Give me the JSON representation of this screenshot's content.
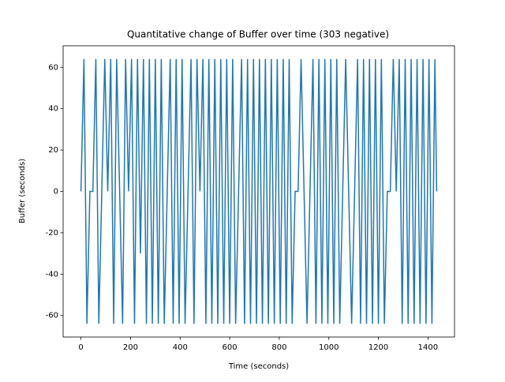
{
  "chart_data": {
    "type": "line",
    "title": "Quantitative change of Buffer over time (303 negative)",
    "x_label": "Time (seconds)",
    "y_label": "Buffer (seconds)",
    "x": [
      0,
      12,
      24,
      36,
      48,
      60,
      72,
      84,
      96,
      108,
      120,
      132,
      144,
      156,
      168,
      180,
      192,
      204,
      216,
      228,
      240,
      252,
      264,
      276,
      288,
      300,
      312,
      324,
      336,
      348,
      360,
      372,
      384,
      396,
      408,
      420,
      432,
      444,
      456,
      468,
      480,
      492,
      504,
      516,
      528,
      540,
      552,
      564,
      576,
      588,
      600,
      612,
      624,
      636,
      648,
      660,
      672,
      684,
      696,
      708,
      720,
      732,
      744,
      756,
      768,
      780,
      792,
      804,
      816,
      828,
      840,
      852,
      864,
      876,
      888,
      900,
      912,
      924,
      936,
      948,
      960,
      972,
      984,
      996,
      1008,
      1020,
      1032,
      1044,
      1056,
      1068,
      1080,
      1092,
      1104,
      1116,
      1128,
      1140,
      1152,
      1164,
      1176,
      1188,
      1200,
      1212,
      1224,
      1236,
      1248,
      1260,
      1272,
      1284,
      1296,
      1308,
      1320,
      1332,
      1344,
      1356,
      1368,
      1380,
      1392,
      1404,
      1416,
      1428,
      1435
    ],
    "values": [
      0,
      64,
      -64,
      0,
      0,
      64,
      -64,
      0,
      64,
      0,
      64,
      -64,
      64,
      0,
      -64,
      64,
      0,
      64,
      -64,
      64,
      -30,
      64,
      -64,
      64,
      -64,
      64,
      -64,
      64,
      -64,
      0,
      64,
      -64,
      64,
      -64,
      64,
      -64,
      0,
      64,
      -64,
      64,
      0,
      64,
      -64,
      64,
      -64,
      64,
      -64,
      64,
      -64,
      64,
      -64,
      64,
      -64,
      0,
      64,
      -64,
      64,
      -64,
      64,
      -64,
      64,
      -64,
      64,
      -64,
      64,
      -64,
      64,
      -64,
      64,
      -64,
      64,
      -64,
      0,
      0,
      64,
      0,
      -64,
      0,
      64,
      -64,
      64,
      -64,
      64,
      -64,
      64,
      -64,
      64,
      -64,
      0,
      64,
      0,
      -64,
      0,
      64,
      -64,
      64,
      -64,
      64,
      -64,
      64,
      -64,
      64,
      -64,
      0,
      0,
      64,
      0,
      64,
      -64,
      64,
      -64,
      64,
      -64,
      64,
      -64,
      64,
      -64,
      64,
      -64,
      64,
      0
    ],
    "color": "#1f77b4",
    "xlim": [
      -72,
      1507
    ],
    "ylim": [
      -70.4,
      70.4
    ],
    "xticks": [
      0,
      200,
      400,
      600,
      800,
      1000,
      1200,
      1400
    ],
    "yticks": [
      -60,
      -40,
      -20,
      0,
      20,
      40,
      60
    ]
  }
}
